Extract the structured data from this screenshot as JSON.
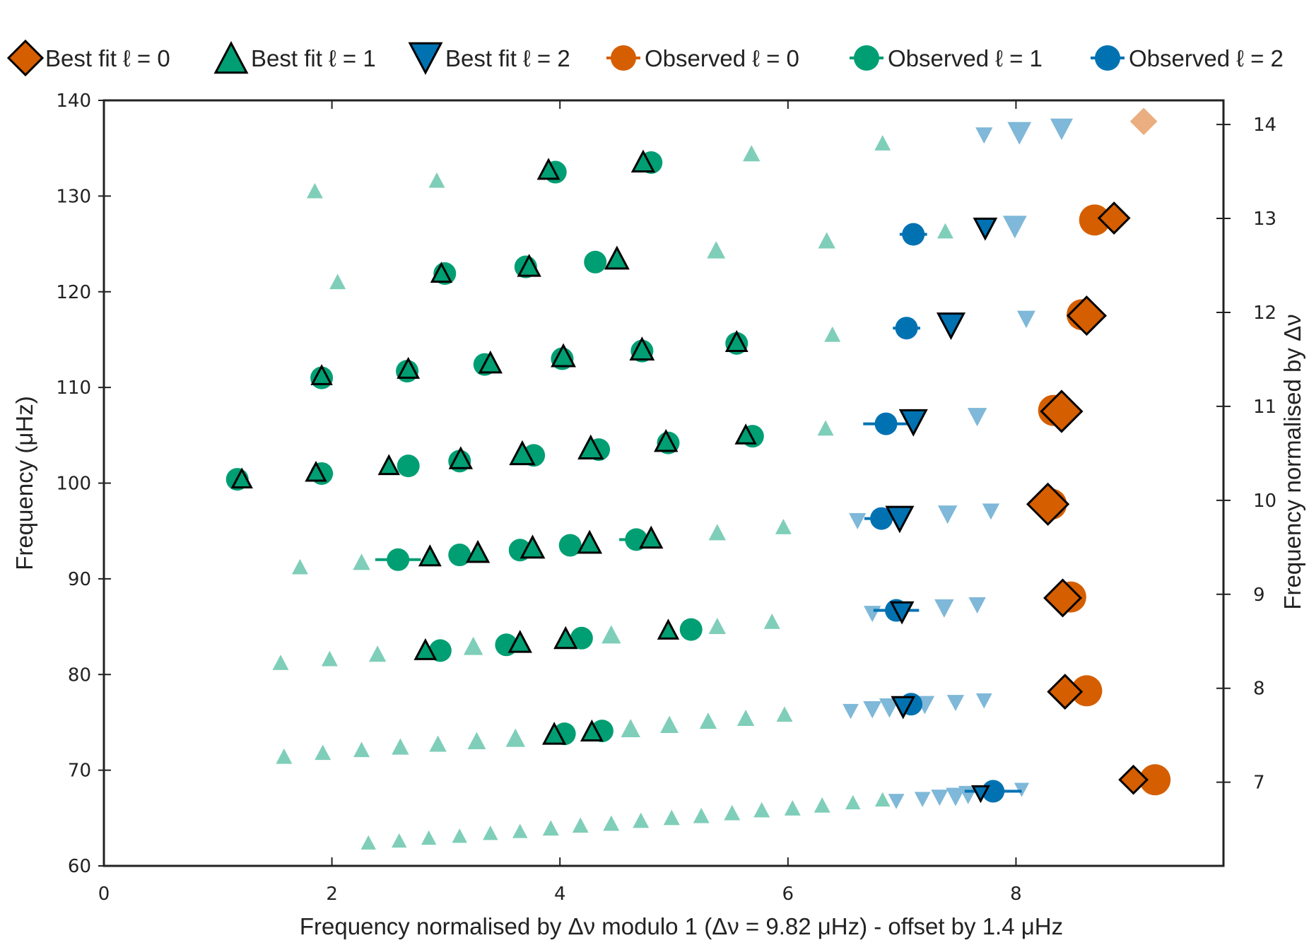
{
  "chart_data": {
    "type": "scatter",
    "title": "",
    "xlabel": "Frequency normalised by Δν modulo 1 (Δν = 9.82 μHz) - offset by 1.4 μHz",
    "ylabel": "Frequency (μHz)",
    "ylabel_right": "Frequency normalised by Δν",
    "xlim": [
      0,
      9.82
    ],
    "ylim": [
      60,
      140
    ],
    "ylim_right": [
      6.11,
      14.26
    ],
    "xticks": [
      "0",
      "2",
      "4",
      "6",
      "8"
    ],
    "xtick_values": [
      0,
      2,
      4,
      6,
      8
    ],
    "yticks": [
      "60",
      "70",
      "80",
      "90",
      "100",
      "110",
      "120",
      "130",
      "140"
    ],
    "ytick_values": [
      60,
      70,
      80,
      90,
      100,
      110,
      120,
      130,
      140
    ],
    "yticks_right": [
      "7",
      "8",
      "9",
      "10",
      "11",
      "12",
      "13",
      "14"
    ],
    "ytick_right_values": [
      7,
      8,
      9,
      10,
      11,
      12,
      13,
      14
    ],
    "grid": false,
    "legend_position": "top",
    "colors": {
      "l0": "#D55E00",
      "l1": "#009E73",
      "l2": "#0072B2",
      "l0_faint": "#EBAE80",
      "l1_faint": "#7FCEB9",
      "l2_faint": "#7FB8D8"
    },
    "legend": [
      {
        "label": "Best fit ℓ = 0",
        "marker": "diamond",
        "series": "l0"
      },
      {
        "label": "Best fit ℓ = 1",
        "marker": "triangle-up",
        "series": "l1"
      },
      {
        "label": "Best fit ℓ = 2",
        "marker": "triangle-down",
        "series": "l2"
      },
      {
        "label": "Observed ℓ = 0",
        "marker": "circle-errorbar",
        "series": "l0"
      },
      {
        "label": "Observed ℓ = 1",
        "marker": "circle-errorbar",
        "series": "l1"
      },
      {
        "label": "Observed ℓ = 2",
        "marker": "circle-errorbar",
        "series": "l2"
      }
    ],
    "series": [
      {
        "name": "Observed ℓ = 0",
        "kind": "observed",
        "degree": 0,
        "points": [
          {
            "x": 9.22,
            "y": 69.0,
            "xerr": 0.0
          },
          {
            "x": 8.62,
            "y": 78.3,
            "xerr": 0.0
          },
          {
            "x": 8.48,
            "y": 88.1,
            "xerr": 0.0
          },
          {
            "x": 8.31,
            "y": 97.8,
            "xerr": 0.0
          },
          {
            "x": 8.33,
            "y": 107.6,
            "xerr": 0.0
          },
          {
            "x": 8.58,
            "y": 117.6,
            "xerr": 0.0
          },
          {
            "x": 8.69,
            "y": 127.5,
            "xerr": 0.0
          }
        ]
      },
      {
        "name": "Observed ℓ = 1",
        "kind": "observed",
        "degree": 1,
        "points": [
          {
            "x": 4.04,
            "y": 73.8,
            "xerr": 0.0
          },
          {
            "x": 4.37,
            "y": 74.1,
            "xerr": 0.0
          },
          {
            "x": 2.95,
            "y": 82.5,
            "xerr": 0.0
          },
          {
            "x": 3.53,
            "y": 83.1,
            "xerr": 0.0
          },
          {
            "x": 4.19,
            "y": 83.8,
            "xerr": 0.0
          },
          {
            "x": 5.15,
            "y": 84.7,
            "xerr": 0.0
          },
          {
            "x": 2.58,
            "y": 92.0,
            "xerr": 0.2
          },
          {
            "x": 3.12,
            "y": 92.5,
            "xerr": 0.0
          },
          {
            "x": 3.65,
            "y": 93.0,
            "xerr": 0.0
          },
          {
            "x": 4.09,
            "y": 93.5,
            "xerr": 0.0
          },
          {
            "x": 4.67,
            "y": 94.1,
            "xerr": 0.15
          },
          {
            "x": 1.17,
            "y": 100.4,
            "xerr": 0.0
          },
          {
            "x": 1.91,
            "y": 101.0,
            "xerr": 0.1
          },
          {
            "x": 2.67,
            "y": 101.8,
            "xerr": 0.0
          },
          {
            "x": 3.12,
            "y": 102.3,
            "xerr": 0.0
          },
          {
            "x": 3.77,
            "y": 102.9,
            "xerr": 0.0
          },
          {
            "x": 4.34,
            "y": 103.5,
            "xerr": 0.0
          },
          {
            "x": 4.95,
            "y": 104.2,
            "xerr": 0.0
          },
          {
            "x": 5.69,
            "y": 104.9,
            "xerr": 0.0
          },
          {
            "x": 1.91,
            "y": 111.0,
            "xerr": 0.0
          },
          {
            "x": 2.66,
            "y": 111.7,
            "xerr": 0.0
          },
          {
            "x": 3.34,
            "y": 112.4,
            "xerr": 0.0
          },
          {
            "x": 4.02,
            "y": 113.0,
            "xerr": 0.0
          },
          {
            "x": 4.72,
            "y": 113.8,
            "xerr": 0.0
          },
          {
            "x": 5.55,
            "y": 114.6,
            "xerr": 0.0
          },
          {
            "x": 2.99,
            "y": 121.9,
            "xerr": 0.0
          },
          {
            "x": 3.7,
            "y": 122.6,
            "xerr": 0.0
          },
          {
            "x": 4.31,
            "y": 123.1,
            "xerr": 0.0
          },
          {
            "x": 3.96,
            "y": 132.5,
            "xerr": 0.0
          },
          {
            "x": 4.8,
            "y": 133.5,
            "xerr": 0.0
          }
        ]
      },
      {
        "name": "Observed ℓ = 2",
        "kind": "observed",
        "degree": 2,
        "points": [
          {
            "x": 7.8,
            "y": 67.8,
            "xerr": 0.25
          },
          {
            "x": 7.08,
            "y": 76.9,
            "xerr": 0.0
          },
          {
            "x": 6.95,
            "y": 86.7,
            "xerr": 0.2
          },
          {
            "x": 6.82,
            "y": 96.3,
            "xerr": 0.15
          },
          {
            "x": 6.86,
            "y": 106.2,
            "xerr": 0.2
          },
          {
            "x": 7.04,
            "y": 116.2,
            "xerr": 0.12
          },
          {
            "x": 7.1,
            "y": 126.0,
            "xerr": 0.12
          }
        ]
      },
      {
        "name": "Best fit ℓ = 0",
        "kind": "model",
        "degree": 0,
        "points": [
          {
            "x": 9.03,
            "y": 69.0,
            "weight": 0.55
          },
          {
            "x": 8.43,
            "y": 78.2,
            "weight": 0.75
          },
          {
            "x": 8.41,
            "y": 88.0,
            "weight": 0.85
          },
          {
            "x": 8.28,
            "y": 97.8,
            "weight": 1.0
          },
          {
            "x": 8.4,
            "y": 107.5,
            "weight": 1.0
          },
          {
            "x": 8.62,
            "y": 117.5,
            "weight": 0.9
          },
          {
            "x": 8.86,
            "y": 127.7,
            "weight": 0.65
          },
          {
            "x": 9.12,
            "y": 137.8,
            "weight": 0.45
          }
        ]
      },
      {
        "name": "Best fit ℓ = 1",
        "kind": "model",
        "degree": 1,
        "points": [
          {
            "x": 2.32,
            "y": 62.3,
            "weight": 0.25
          },
          {
            "x": 2.59,
            "y": 62.5,
            "weight": 0.25
          },
          {
            "x": 2.85,
            "y": 62.8,
            "weight": 0.25
          },
          {
            "x": 3.12,
            "y": 63.0,
            "weight": 0.25
          },
          {
            "x": 3.39,
            "y": 63.3,
            "weight": 0.25
          },
          {
            "x": 3.65,
            "y": 63.5,
            "weight": 0.25
          },
          {
            "x": 3.92,
            "y": 63.8,
            "weight": 0.3
          },
          {
            "x": 4.18,
            "y": 64.1,
            "weight": 0.3
          },
          {
            "x": 4.45,
            "y": 64.3,
            "weight": 0.3
          },
          {
            "x": 4.71,
            "y": 64.6,
            "weight": 0.3
          },
          {
            "x": 4.98,
            "y": 64.9,
            "weight": 0.3
          },
          {
            "x": 5.24,
            "y": 65.1,
            "weight": 0.3
          },
          {
            "x": 5.51,
            "y": 65.4,
            "weight": 0.3
          },
          {
            "x": 5.77,
            "y": 65.7,
            "weight": 0.3
          },
          {
            "x": 6.04,
            "y": 65.9,
            "weight": 0.3
          },
          {
            "x": 6.3,
            "y": 66.2,
            "weight": 0.3
          },
          {
            "x": 6.57,
            "y": 66.5,
            "weight": 0.25
          },
          {
            "x": 6.83,
            "y": 66.8,
            "weight": 0.25
          },
          {
            "x": 1.58,
            "y": 71.3,
            "weight": 0.3
          },
          {
            "x": 1.92,
            "y": 71.7,
            "weight": 0.3
          },
          {
            "x": 2.26,
            "y": 72.0,
            "weight": 0.3
          },
          {
            "x": 2.6,
            "y": 72.3,
            "weight": 0.35
          },
          {
            "x": 2.93,
            "y": 72.6,
            "weight": 0.35
          },
          {
            "x": 3.27,
            "y": 72.9,
            "weight": 0.4
          },
          {
            "x": 3.61,
            "y": 73.2,
            "weight": 0.45
          },
          {
            "x": 3.95,
            "y": 73.6,
            "weight": 0.6,
            "observed": true
          },
          {
            "x": 4.28,
            "y": 73.9,
            "weight": 0.55,
            "observed": true
          },
          {
            "x": 4.62,
            "y": 74.2,
            "weight": 0.45
          },
          {
            "x": 4.96,
            "y": 74.6,
            "weight": 0.4
          },
          {
            "x": 5.3,
            "y": 75.0,
            "weight": 0.35
          },
          {
            "x": 5.63,
            "y": 75.3,
            "weight": 0.35
          },
          {
            "x": 5.97,
            "y": 75.7,
            "weight": 0.3
          },
          {
            "x": 1.55,
            "y": 81.1,
            "weight": 0.3
          },
          {
            "x": 1.98,
            "y": 81.5,
            "weight": 0.3
          },
          {
            "x": 2.4,
            "y": 82.0,
            "weight": 0.35
          },
          {
            "x": 2.82,
            "y": 82.4,
            "weight": 0.55,
            "observed": true
          },
          {
            "x": 3.24,
            "y": 82.8,
            "weight": 0.45
          },
          {
            "x": 3.65,
            "y": 83.2,
            "weight": 0.6,
            "observed": true
          },
          {
            "x": 4.05,
            "y": 83.6,
            "weight": 0.6,
            "observed": true
          },
          {
            "x": 4.45,
            "y": 84.0,
            "weight": 0.45
          },
          {
            "x": 4.95,
            "y": 84.5,
            "weight": 0.5,
            "observed": true
          },
          {
            "x": 5.38,
            "y": 84.9,
            "weight": 0.35
          },
          {
            "x": 5.86,
            "y": 85.4,
            "weight": 0.3
          },
          {
            "x": 1.72,
            "y": 91.1,
            "weight": 0.3
          },
          {
            "x": 2.26,
            "y": 91.6,
            "weight": 0.35
          },
          {
            "x": 2.86,
            "y": 92.2,
            "weight": 0.55,
            "observed": true
          },
          {
            "x": 3.28,
            "y": 92.6,
            "weight": 0.6,
            "observed": true
          },
          {
            "x": 3.76,
            "y": 93.1,
            "weight": 0.65,
            "observed": true
          },
          {
            "x": 4.26,
            "y": 93.6,
            "weight": 0.65,
            "observed": true
          },
          {
            "x": 4.8,
            "y": 94.1,
            "weight": 0.6,
            "observed": true
          },
          {
            "x": 5.38,
            "y": 94.7,
            "weight": 0.35
          },
          {
            "x": 5.96,
            "y": 95.3,
            "weight": 0.3
          },
          {
            "x": 1.21,
            "y": 100.3,
            "weight": 0.5,
            "observed": true
          },
          {
            "x": 1.86,
            "y": 101.0,
            "weight": 0.5,
            "observed": true
          },
          {
            "x": 2.5,
            "y": 101.7,
            "weight": 0.5,
            "observed": true
          },
          {
            "x": 3.13,
            "y": 102.4,
            "weight": 0.6,
            "observed": true
          },
          {
            "x": 3.67,
            "y": 102.9,
            "weight": 0.7,
            "observed": true
          },
          {
            "x": 4.27,
            "y": 103.5,
            "weight": 0.7,
            "observed": true
          },
          {
            "x": 4.93,
            "y": 104.2,
            "weight": 0.6,
            "observed": true
          },
          {
            "x": 5.63,
            "y": 104.9,
            "weight": 0.5,
            "observed": true
          },
          {
            "x": 6.33,
            "y": 105.6,
            "weight": 0.3
          },
          {
            "x": 1.91,
            "y": 111.1,
            "weight": 0.5,
            "observed": true
          },
          {
            "x": 2.67,
            "y": 111.8,
            "weight": 0.55,
            "observed": true
          },
          {
            "x": 3.39,
            "y": 112.4,
            "weight": 0.6,
            "observed": true
          },
          {
            "x": 4.03,
            "y": 113.1,
            "weight": 0.65,
            "observed": true
          },
          {
            "x": 4.72,
            "y": 113.8,
            "weight": 0.65,
            "observed": true
          },
          {
            "x": 5.55,
            "y": 114.6,
            "weight": 0.55,
            "observed": true
          },
          {
            "x": 6.39,
            "y": 115.4,
            "weight": 0.3
          },
          {
            "x": 2.05,
            "y": 120.9,
            "weight": 0.3
          },
          {
            "x": 2.96,
            "y": 121.8,
            "weight": 0.5,
            "observed": true
          },
          {
            "x": 3.73,
            "y": 122.5,
            "weight": 0.6,
            "observed": true
          },
          {
            "x": 4.5,
            "y": 123.3,
            "weight": 0.65,
            "observed": true
          },
          {
            "x": 5.37,
            "y": 124.2,
            "weight": 0.4
          },
          {
            "x": 6.34,
            "y": 125.2,
            "weight": 0.35
          },
          {
            "x": 7.38,
            "y": 126.2,
            "weight": 0.3
          },
          {
            "x": 1.85,
            "y": 130.4,
            "weight": 0.3
          },
          {
            "x": 2.92,
            "y": 131.5,
            "weight": 0.3
          },
          {
            "x": 3.9,
            "y": 132.6,
            "weight": 0.55,
            "observed": true
          },
          {
            "x": 4.73,
            "y": 133.4,
            "weight": 0.6,
            "observed": true
          },
          {
            "x": 5.68,
            "y": 134.3,
            "weight": 0.35
          },
          {
            "x": 6.83,
            "y": 135.4,
            "weight": 0.3
          }
        ]
      },
      {
        "name": "Best fit ℓ = 2",
        "kind": "model",
        "degree": 2,
        "points": [
          {
            "x": 6.95,
            "y": 66.9,
            "weight": 0.25
          },
          {
            "x": 7.18,
            "y": 67.1,
            "weight": 0.25
          },
          {
            "x": 7.33,
            "y": 67.3,
            "weight": 0.3
          },
          {
            "x": 7.47,
            "y": 67.4,
            "weight": 0.4
          },
          {
            "x": 7.58,
            "y": 67.6,
            "weight": 0.4
          },
          {
            "x": 7.69,
            "y": 67.7,
            "weight": 0.3,
            "observed": true
          },
          {
            "x": 8.05,
            "y": 68.1,
            "weight": 0.2
          },
          {
            "x": 6.55,
            "y": 76.3,
            "weight": 0.25
          },
          {
            "x": 6.74,
            "y": 76.5,
            "weight": 0.35
          },
          {
            "x": 6.89,
            "y": 76.7,
            "weight": 0.45
          },
          {
            "x": 7.01,
            "y": 76.8,
            "weight": 0.55,
            "observed": true
          },
          {
            "x": 7.2,
            "y": 77.0,
            "weight": 0.4
          },
          {
            "x": 7.47,
            "y": 77.2,
            "weight": 0.3
          },
          {
            "x": 7.72,
            "y": 77.4,
            "weight": 0.25
          },
          {
            "x": 6.74,
            "y": 86.5,
            "weight": 0.3
          },
          {
            "x": 7.0,
            "y": 86.7,
            "weight": 0.55,
            "observed": true
          },
          {
            "x": 7.37,
            "y": 87.1,
            "weight": 0.4
          },
          {
            "x": 7.66,
            "y": 87.4,
            "weight": 0.3
          },
          {
            "x": 6.61,
            "y": 96.2,
            "weight": 0.3
          },
          {
            "x": 6.98,
            "y": 96.5,
            "weight": 0.75,
            "observed": true
          },
          {
            "x": 7.4,
            "y": 96.9,
            "weight": 0.4
          },
          {
            "x": 7.78,
            "y": 97.2,
            "weight": 0.3
          },
          {
            "x": 7.1,
            "y": 106.6,
            "weight": 0.75,
            "observed": true
          },
          {
            "x": 7.66,
            "y": 107.1,
            "weight": 0.4
          },
          {
            "x": 7.43,
            "y": 116.7,
            "weight": 0.75,
            "observed": true
          },
          {
            "x": 8.09,
            "y": 117.3,
            "weight": 0.35
          },
          {
            "x": 7.73,
            "y": 126.8,
            "weight": 0.55,
            "observed": true
          },
          {
            "x": 7.99,
            "y": 127.0,
            "weight": 0.6
          },
          {
            "x": 7.72,
            "y": 136.5,
            "weight": 0.3
          },
          {
            "x": 8.03,
            "y": 136.8,
            "weight": 0.6
          },
          {
            "x": 8.4,
            "y": 137.2,
            "weight": 0.55
          }
        ]
      }
    ]
  }
}
